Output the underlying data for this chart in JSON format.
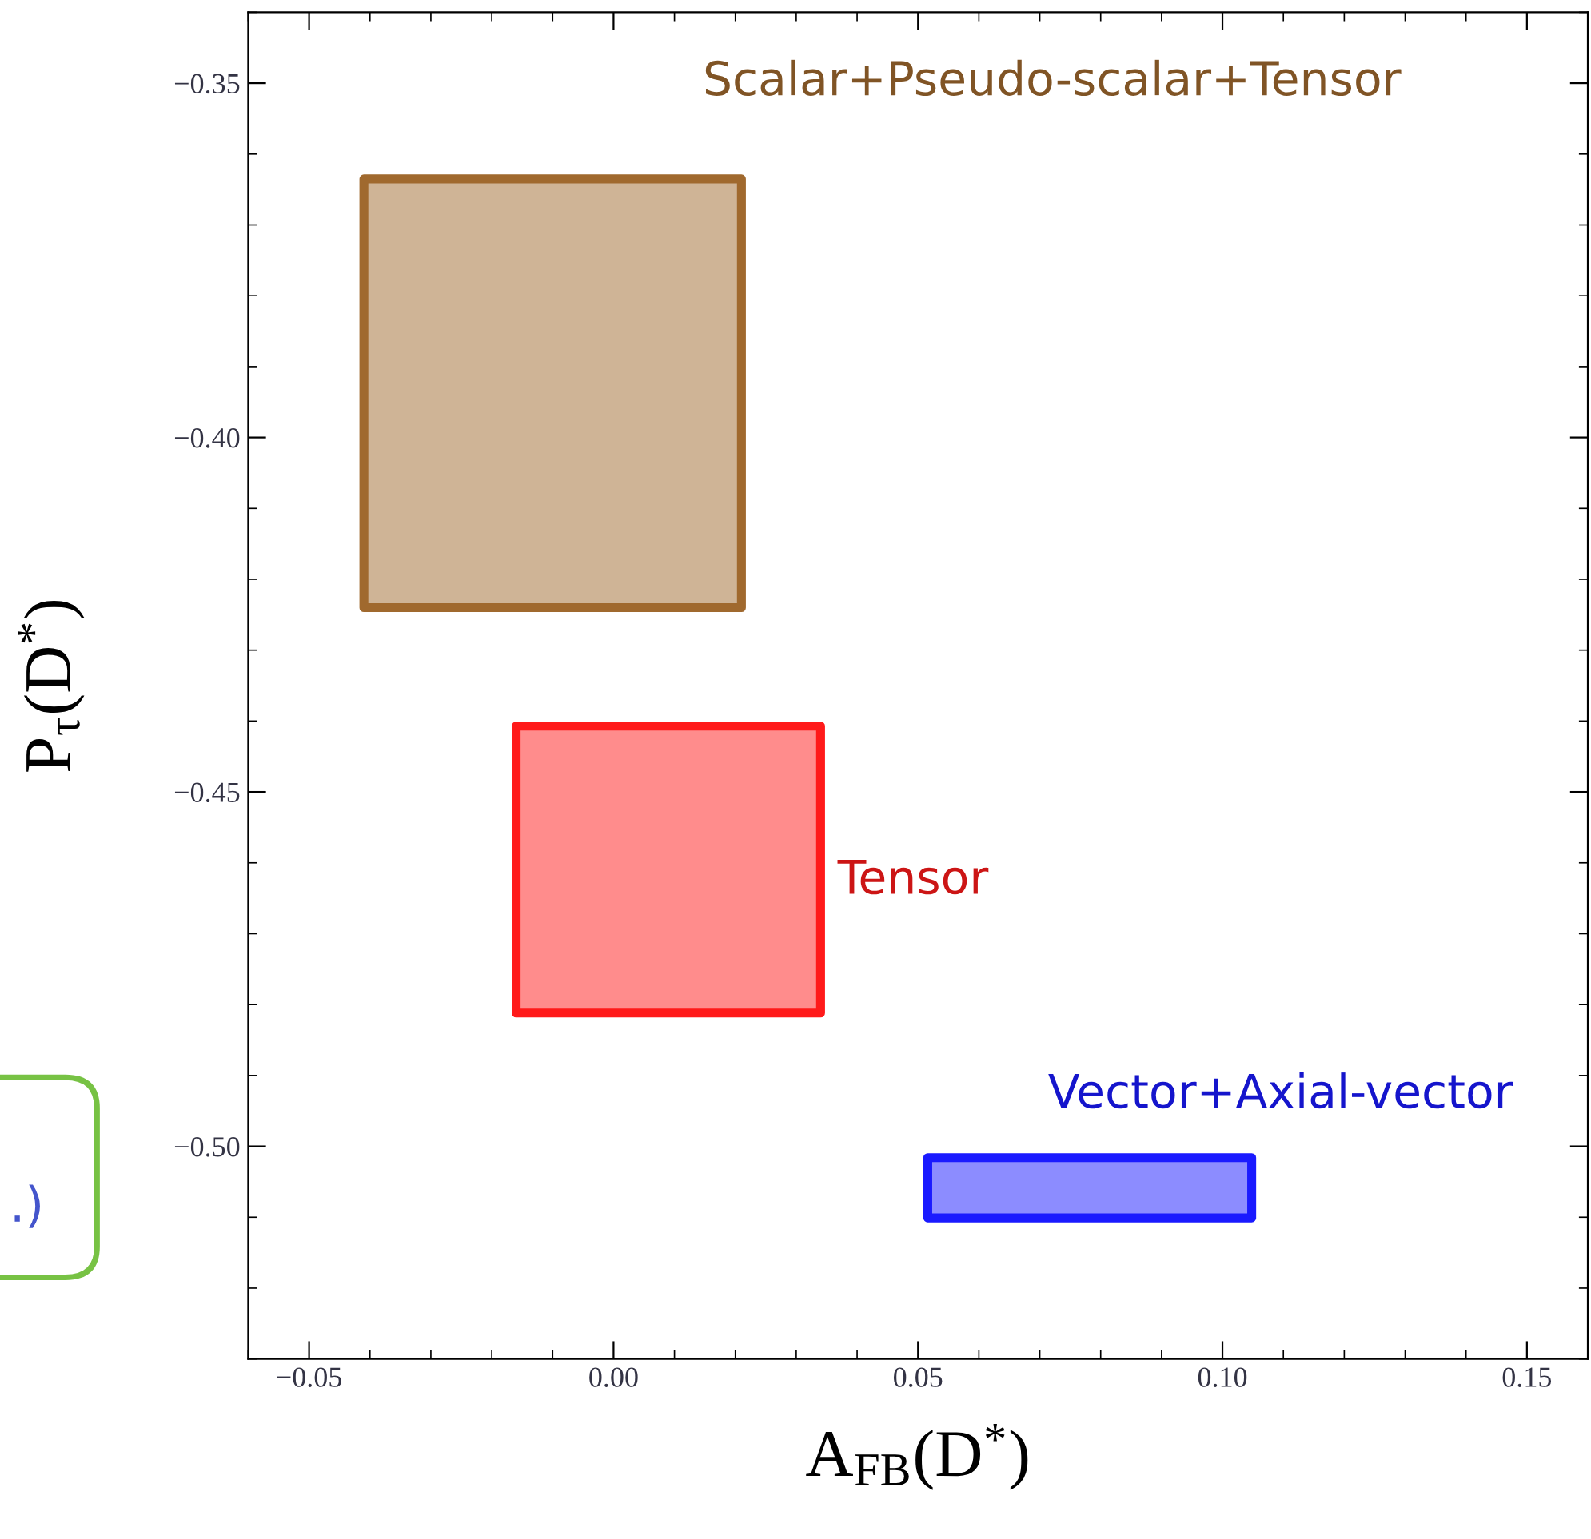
{
  "chart_data": {
    "type": "area",
    "xlabel": "A$_{FB}$(D$^{*}$)",
    "ylabel": "P$_{τ}$(D$^{*}$)",
    "series": [
      {
        "color": "#a0692e",
        "x": [
          -0.041,
          0.021,
          0.021,
          -0.041
        ],
        "values": [
          -0.3635,
          -0.3635,
          -0.424,
          -0.424
        ]
      },
      {
        "color": "#ff1a1a",
        "x": [
          -0.016,
          0.034,
          0.034,
          -0.016
        ],
        "values": [
          -0.4407,
          -0.4407,
          -0.4812,
          -0.4812
        ]
      },
      {
        "color": "#1a1aff",
        "x": [
          0.0516,
          0.1048,
          0.1048,
          0.0516
        ],
        "values": [
          -0.5016,
          -0.5016,
          -0.5101,
          -0.5101
        ]
      }
    ],
    "annotations": [
      "Scalar+Pseudo-scalar+Tensor",
      "Tensor",
      "Vector+Axial-vector",
      ".)"
    ],
    "xlim": [
      -0.06,
      0.16
    ],
    "ylim": [
      -0.53,
      -0.34
    ],
    "xticks": [
      {
        "value": -0.05,
        "label": "−0.05"
      },
      {
        "value": 0.0,
        "label": "0.00"
      },
      {
        "value": 0.05,
        "label": "0.05"
      },
      {
        "value": 0.1,
        "label": "0.10"
      },
      {
        "value": 0.15,
        "label": "0.15"
      }
    ],
    "yticks": [
      {
        "value": -0.35,
        "label": "−0.35"
      },
      {
        "value": -0.4,
        "label": "−0.40"
      },
      {
        "value": -0.45,
        "label": "−0.45"
      },
      {
        "value": -0.5,
        "label": "−0.50"
      }
    ],
    "grid": false,
    "legend": false
  }
}
